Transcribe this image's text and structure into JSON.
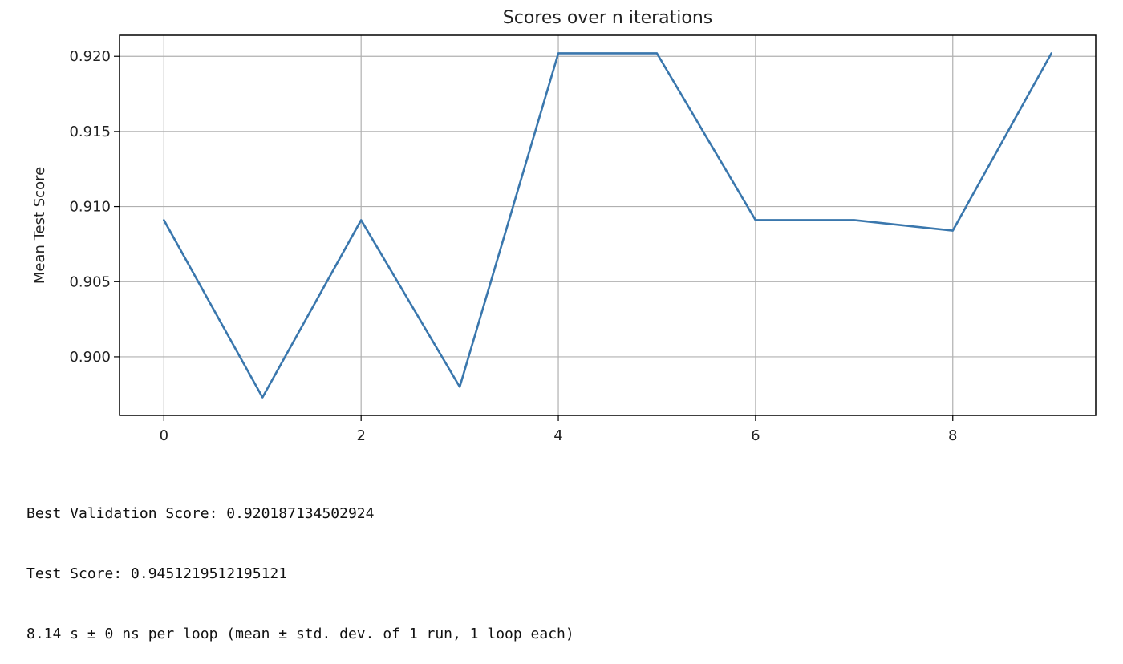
{
  "chart_data": {
    "type": "line",
    "title": "Scores over n iterations",
    "xlabel": "",
    "ylabel": "Mean Test Score",
    "xlim": [
      -0.45,
      9.45
    ],
    "ylim": [
      0.8961,
      0.9214
    ],
    "xticks": [
      0,
      2,
      4,
      6,
      8
    ],
    "xtick_labels": [
      "0",
      "2",
      "4",
      "6",
      "8"
    ],
    "yticks": [
      0.9,
      0.905,
      0.91,
      0.915,
      0.92
    ],
    "ytick_labels": [
      "0.900",
      "0.905",
      "0.910",
      "0.915",
      "0.920"
    ],
    "grid": true,
    "series": [
      {
        "color": "#3a77ad",
        "x": [
          0,
          1,
          2,
          3,
          4,
          5,
          6,
          7,
          8,
          9
        ],
        "values": [
          0.9091,
          0.8973,
          0.9091,
          0.898,
          0.9202,
          0.9202,
          0.9091,
          0.9091,
          0.9084,
          0.9202
        ]
      }
    ]
  },
  "output": {
    "lines": [
      "Best Validation Score: 0.920187134502924",
      "Test Score: 0.9451219512195121",
      "8.14 s ± 0 ns per loop (mean ± std. dev. of 1 run, 1 loop each)"
    ]
  }
}
